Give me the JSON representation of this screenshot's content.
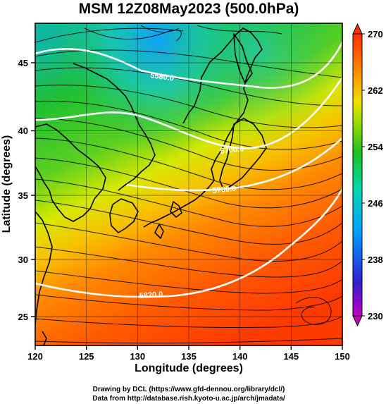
{
  "title": "MSM 12Z08May2023 (500.0hPa)",
  "x_axis": {
    "label": "Longitude (degrees)",
    "min": 120,
    "max": 150,
    "ticks": [
      "120",
      "125",
      "130",
      "135",
      "140",
      "145",
      "150"
    ]
  },
  "y_axis": {
    "label": "Latitude  (degrees)",
    "min": 22.4,
    "max": 47.6,
    "ticks": [
      "25",
      "30",
      "35",
      "40",
      "45"
    ]
  },
  "colorbar": {
    "min": 230,
    "max": 270,
    "ticks": [
      "230",
      "238",
      "246",
      "254",
      "262",
      "270"
    ],
    "colors": [
      "#c000c0",
      "#3020d0",
      "#00a0ff",
      "#00d8b0",
      "#20c020",
      "#a8e000",
      "#f0e000",
      "#ff9000",
      "#ff3000"
    ]
  },
  "contours": [
    {
      "label": "5580.0"
    },
    {
      "label": "5700.0"
    },
    {
      "label": "5760.0"
    },
    {
      "label": "5820.0"
    }
  ],
  "credits": {
    "line1": "Drawing by DCL (https://www.gfd-dennou.org/library/dcl/)",
    "line2": "Data from http://database.rish.kyoto-u.ac.jp/arch/jmadata/"
  }
}
